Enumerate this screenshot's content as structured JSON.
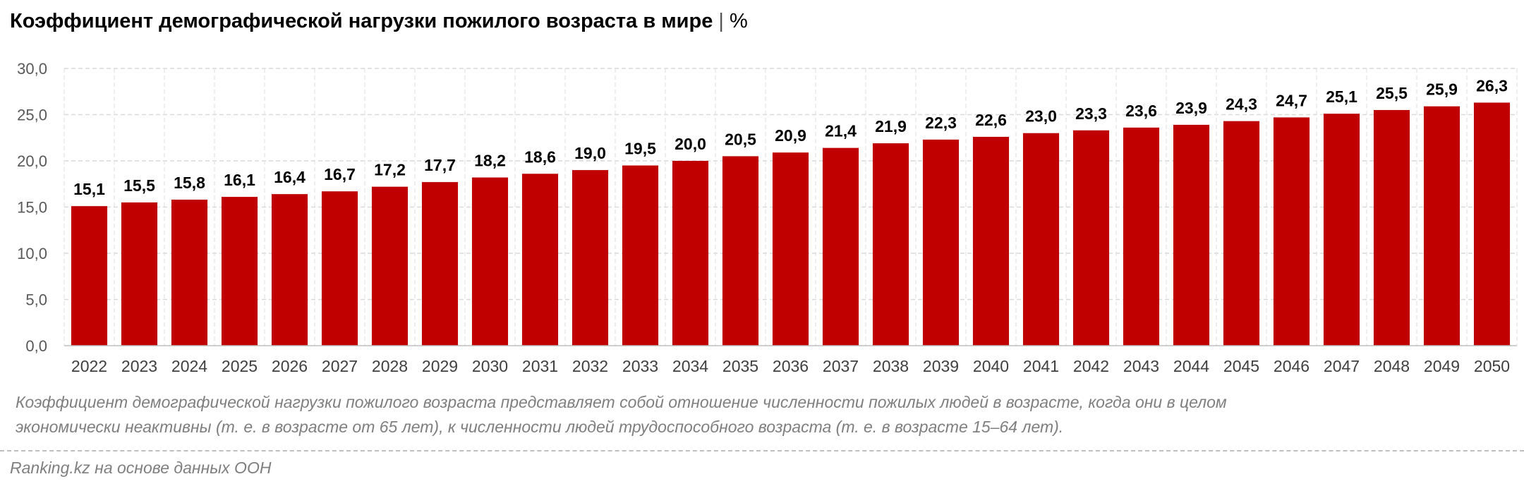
{
  "header": {
    "title": "Коэффициент демографической нагрузки пожилого возраста в мире",
    "separator": "|",
    "unit": "%"
  },
  "chart_data": {
    "type": "bar",
    "title": "Коэффициент демографической нагрузки пожилого возраста в мире | %",
    "xlabel": "",
    "ylabel": "",
    "ylim": [
      0,
      30
    ],
    "yticks": [
      "0,0",
      "5,0",
      "10,0",
      "15,0",
      "20,0",
      "25,0",
      "30,0"
    ],
    "grid": true,
    "legend": "none",
    "bar_color": "#c00000",
    "categories": [
      "2022",
      "2023",
      "2024",
      "2025",
      "2026",
      "2027",
      "2028",
      "2029",
      "2030",
      "2031",
      "2032",
      "2033",
      "2034",
      "2035",
      "2036",
      "2037",
      "2038",
      "2039",
      "2040",
      "2041",
      "2042",
      "2043",
      "2044",
      "2045",
      "2046",
      "2047",
      "2048",
      "2049",
      "2050"
    ],
    "values": [
      15.1,
      15.5,
      15.8,
      16.1,
      16.4,
      16.7,
      17.2,
      17.7,
      18.2,
      18.6,
      19.0,
      19.5,
      20.0,
      20.5,
      20.9,
      21.4,
      21.9,
      22.3,
      22.6,
      23.0,
      23.3,
      23.6,
      23.9,
      24.3,
      24.7,
      25.1,
      25.5,
      25.9,
      26.3
    ],
    "data_labels": [
      "15,1",
      "15,5",
      "15,8",
      "16,1",
      "16,4",
      "16,7",
      "17,2",
      "17,7",
      "18,2",
      "18,6",
      "19,0",
      "19,5",
      "20,0",
      "20,5",
      "20,9",
      "21,4",
      "21,9",
      "22,3",
      "22,6",
      "23,0",
      "23,3",
      "23,6",
      "23,9",
      "24,3",
      "24,7",
      "25,1",
      "25,5",
      "25,9",
      "26,3"
    ]
  },
  "notes": {
    "line1": "Коэффициент демографической нагрузки пожилого возраста представляет собой отношение численности пожилых людей в возрасте, когда они в целом",
    "line2": "экономически неактивны (т. е. в возрасте от 65 лет), к численности людей трудоспособного возраста (т. е. в возрасте 15–64 лет)."
  },
  "source": "Ranking.kz на основе данных ООН"
}
